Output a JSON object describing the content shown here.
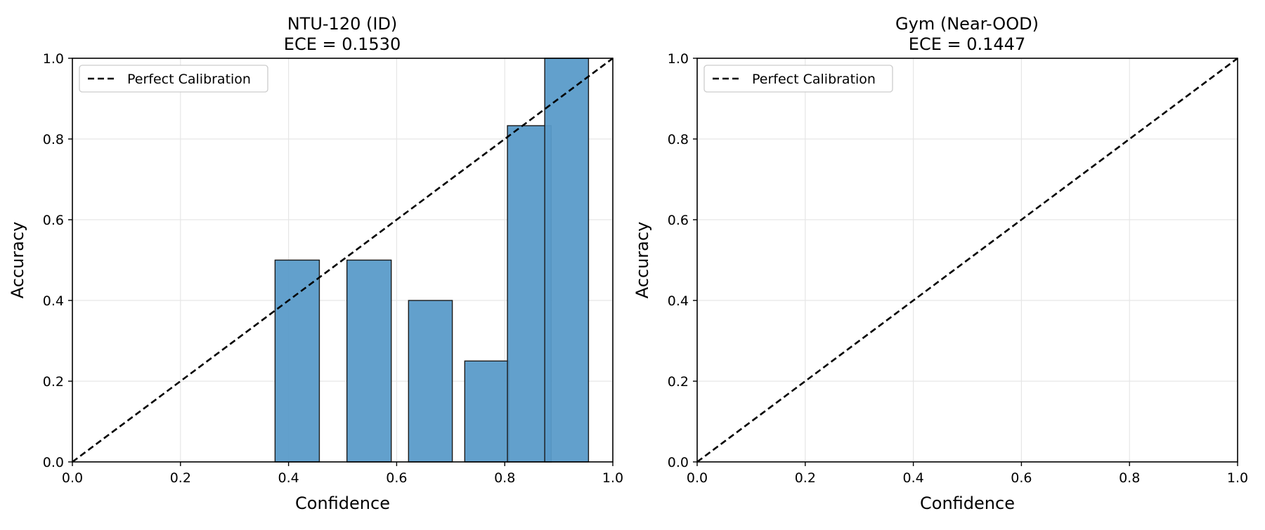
{
  "chart_data": [
    {
      "type": "bar",
      "title_line1": "NTU-120 (ID)",
      "title_line2": "ECE = 0.1530",
      "xlabel": "Confidence",
      "ylabel": "Accuracy",
      "xlim": [
        0.0,
        1.0
      ],
      "ylim": [
        0.0,
        1.0
      ],
      "xticks": [
        "0.0",
        "0.2",
        "0.4",
        "0.6",
        "0.8",
        "1.0"
      ],
      "yticks": [
        "0.0",
        "0.2",
        "0.4",
        "0.6",
        "0.8",
        "1.0"
      ],
      "grid": true,
      "legend": {
        "placement": "upper-left",
        "entries": [
          "Perfect Calibration"
        ]
      },
      "reference_line": {
        "x": [
          0.0,
          1.0
        ],
        "y": [
          0.0,
          1.0
        ]
      },
      "bars": [
        {
          "left": 0.375,
          "right": 0.457,
          "value": 0.5
        },
        {
          "left": 0.508,
          "right": 0.59,
          "value": 0.5
        },
        {
          "left": 0.622,
          "right": 0.703,
          "value": 0.4
        },
        {
          "left": 0.726,
          "right": 0.808,
          "value": 0.25
        },
        {
          "left": 0.805,
          "right": 0.886,
          "value": 0.833
        },
        {
          "left": 0.874,
          "right": 0.955,
          "value": 1.0
        }
      ],
      "bar_color": "#5a9bc9",
      "bar_edge_color": "#1a1a1a"
    },
    {
      "type": "bar",
      "title_line1": "Gym (Near-OOD)",
      "title_line2": "ECE = 0.1447",
      "xlabel": "Confidence",
      "ylabel": "Accuracy",
      "xlim": [
        0.0,
        1.0
      ],
      "ylim": [
        0.0,
        1.0
      ],
      "xticks": [
        "0.0",
        "0.2",
        "0.4",
        "0.6",
        "0.8",
        "1.0"
      ],
      "yticks": [
        "0.0",
        "0.2",
        "0.4",
        "0.6",
        "0.8",
        "1.0"
      ],
      "grid": true,
      "legend": {
        "placement": "upper-left",
        "entries": [
          "Perfect Calibration"
        ]
      },
      "reference_line": {
        "x": [
          0.0,
          1.0
        ],
        "y": [
          0.0,
          1.0
        ]
      },
      "bars": [],
      "bar_color": "#5a9bc9",
      "bar_edge_color": "#1a1a1a"
    }
  ]
}
